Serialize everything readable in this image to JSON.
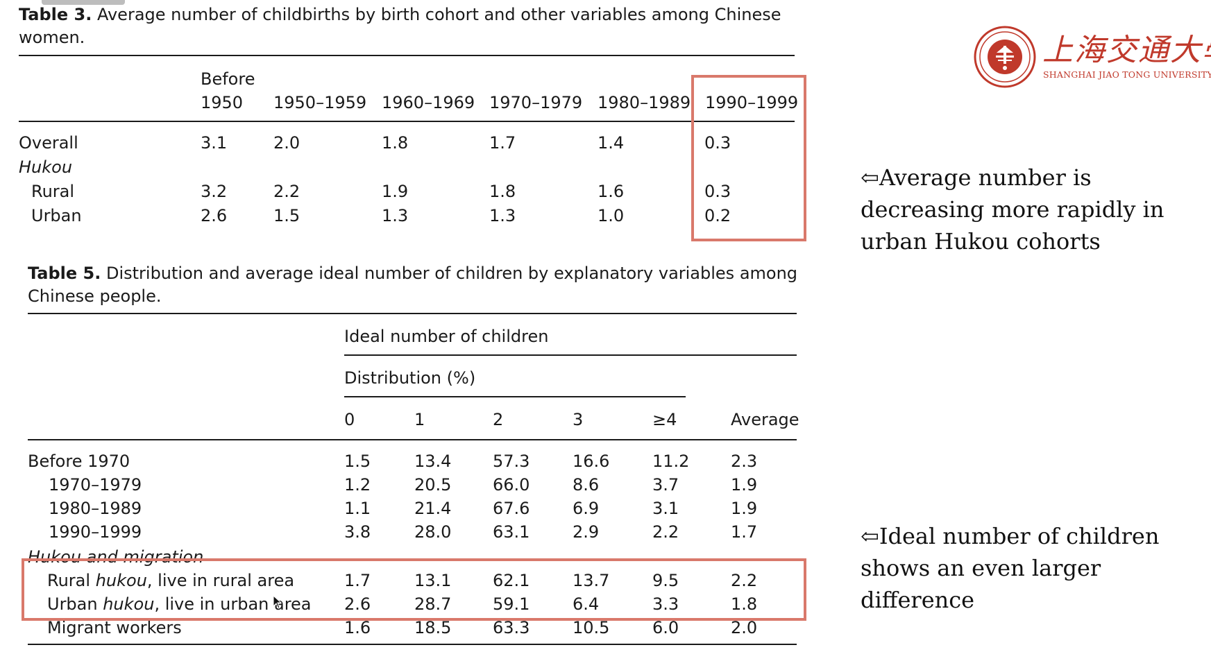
{
  "table3": {
    "label": "Table 3.",
    "caption": "Average number of childbirths by birth cohort and other variables among Chinese women.",
    "header_before": "Before",
    "columns": [
      "1950",
      "1950–1959",
      "1960–1969",
      "1970–1979",
      "1980–1989",
      "1990–1999"
    ],
    "rows": [
      {
        "label": "Overall",
        "values": [
          "3.1",
          "2.0",
          "1.8",
          "1.7",
          "1.4",
          "0.3"
        ]
      },
      {
        "label": "Hukou",
        "values": []
      },
      {
        "label": "Rural",
        "values": [
          "3.2",
          "2.2",
          "1.9",
          "1.8",
          "1.6",
          "0.3"
        ]
      },
      {
        "label": "Urban",
        "values": [
          "2.6",
          "1.5",
          "1.3",
          "1.3",
          "1.0",
          "0.2"
        ]
      }
    ]
  },
  "table5": {
    "label": "Table 5.",
    "caption": "Distribution and average ideal number of children by explanatory variables among Chinese people.",
    "group_header": "Ideal number of children",
    "sub_header": "Distribution (%)",
    "columns": [
      "0",
      "1",
      "2",
      "3",
      "≥4",
      "Average"
    ],
    "rows": [
      {
        "label": "Before 1970",
        "values": [
          "1.5",
          "13.4",
          "57.3",
          "16.6",
          "11.2",
          "2.3"
        ]
      },
      {
        "label": "1970–1979",
        "values": [
          "1.2",
          "20.5",
          "66.0",
          "8.6",
          "3.7",
          "1.9"
        ]
      },
      {
        "label": "1980–1989",
        "values": [
          "1.1",
          "21.4",
          "67.6",
          "6.9",
          "3.1",
          "1.9"
        ]
      },
      {
        "label": "1990–1999",
        "values": [
          "3.8",
          "28.0",
          "63.1",
          "2.9",
          "2.2",
          "1.7"
        ]
      },
      {
        "label": "Hukou and migration",
        "values": []
      },
      {
        "label_pre": "Rural ",
        "label_em": "hukou",
        "label_post": ", live in rural area",
        "values": [
          "1.7",
          "13.1",
          "62.1",
          "13.7",
          "9.5",
          "2.2"
        ]
      },
      {
        "label_pre": "Urban ",
        "label_em": "hukou",
        "label_post": ", live in urban area",
        "values": [
          "2.6",
          "28.7",
          "59.1",
          "6.4",
          "3.3",
          "1.8"
        ]
      },
      {
        "label": "Migrant workers",
        "values": [
          "1.6",
          "18.5",
          "63.3",
          "10.5",
          "6.0",
          "2.0"
        ]
      }
    ]
  },
  "notes": {
    "note1": "⇦Average number is decreasing more rapidly in urban Hukou cohorts",
    "note2": "⇦Ideal number of children shows an even larger difference"
  },
  "logo": {
    "name_cn": "上海交通大學",
    "name_en": "SHANGHAI JIAO TONG UNIVERSITY",
    "seal_text": "SHANGHAI JIAO TONG UNIVERSITY"
  },
  "colors": {
    "highlight": "#d9796b",
    "logo_red": "#c0392b"
  }
}
